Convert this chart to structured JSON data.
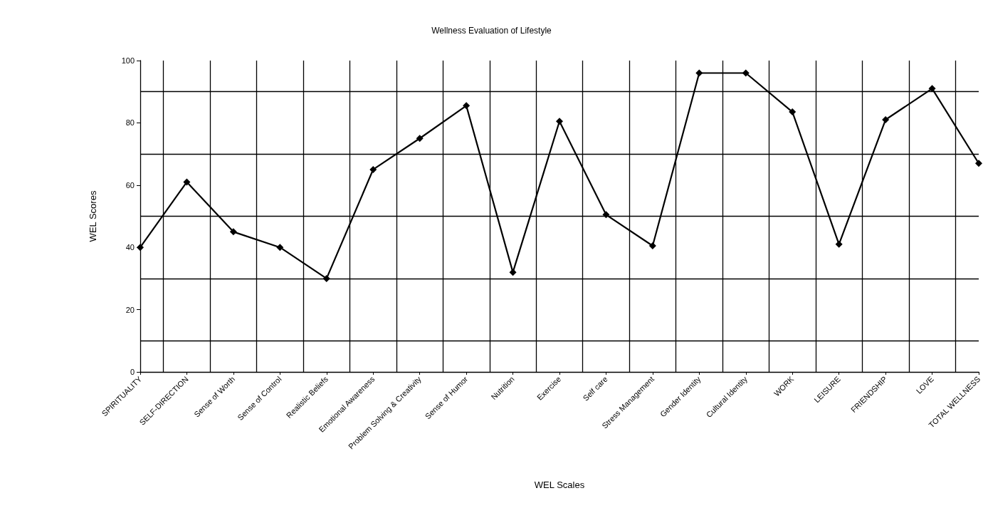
{
  "chart_data": {
    "type": "line",
    "title": "Wellness Evaluation of Lifestyle",
    "xlabel": "WEL Scales",
    "ylabel": "WEL Scores",
    "categories": [
      "SPIRITUALITY",
      "SELF-DIRECTION",
      "Sense of Worth",
      "Sense of Control",
      "Realistic Beliefs",
      "Emotional Awareness",
      "Problem Solving & Creativity",
      "Sense of Humor",
      "Nutrition",
      "Exercise",
      "Self care",
      "Stress Management",
      "Gender Identity",
      "Cultural Identity",
      "WORK",
      "LEISURE",
      "FRIENDSHIP",
      "LOVE",
      "TOTAL WELLNESS"
    ],
    "series": [
      {
        "color": "#000000",
        "values": [
          40,
          61,
          45,
          40,
          30,
          65,
          75,
          85.5,
          32,
          80.5,
          50.5,
          40.5,
          96,
          96,
          83.5,
          41,
          81,
          91,
          67
        ]
      }
    ],
    "ylim": [
      0,
      100
    ],
    "yticks": [
      0,
      20,
      40,
      60,
      80,
      100
    ],
    "ref_lines": [
      {
        "axis": "y",
        "value": 10,
        "color": "#000000"
      },
      {
        "axis": "y",
        "value": 30,
        "color": "#000000"
      },
      {
        "axis": "y",
        "value": 50,
        "color": "#000000"
      },
      {
        "axis": "y",
        "value": 70,
        "color": "#000000"
      },
      {
        "axis": "y",
        "value": 90,
        "color": "#000000"
      }
    ],
    "grid": "x",
    "marker": "diamond",
    "line_style": "solid"
  }
}
